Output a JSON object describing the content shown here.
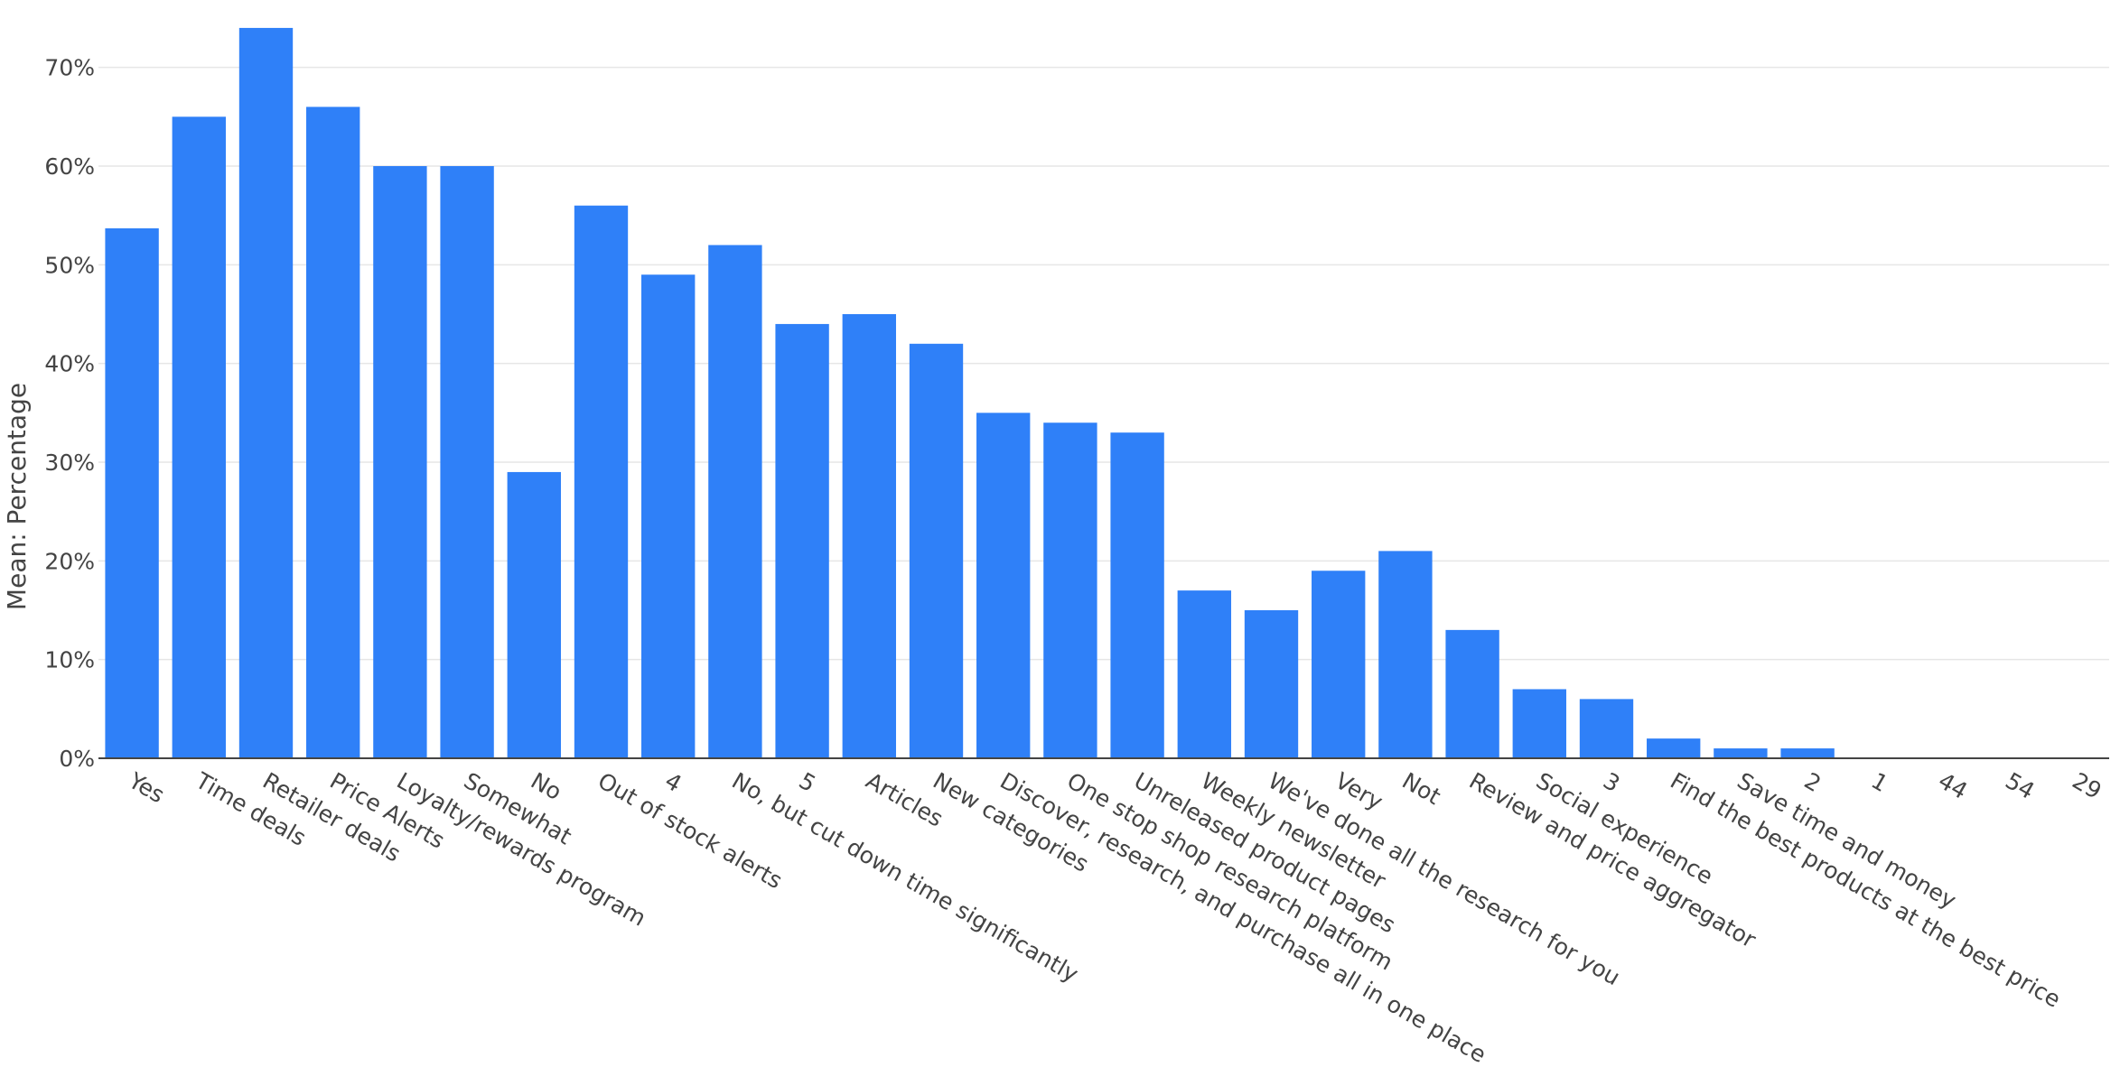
{
  "chart_data": {
    "type": "bar",
    "ylabel": "Mean: Percentage",
    "xlabel": "",
    "ylim": [
      0,
      75
    ],
    "yticks": [
      0,
      10,
      20,
      30,
      40,
      50,
      60,
      70
    ],
    "ytick_labels": [
      "0%",
      "10%",
      "20%",
      "30%",
      "40%",
      "50%",
      "60%",
      "70%"
    ],
    "grid": "horizontal",
    "bar_color": "#2f80f8",
    "categories": [
      "Yes",
      "Time deals",
      "Retailer deals",
      "Price Alerts",
      "Loyalty/rewards program",
      "Somewhat",
      "No",
      "Out of stock alerts",
      "4",
      "No, but cut down time significantly",
      "5",
      "Articles",
      "New categories",
      "Discover, research, and purchase all in one place",
      "One stop shop research platform",
      "Unreleased product pages",
      "Weekly newsletter",
      "We've done all the research for you",
      "Very",
      "Not",
      "Review and price aggregator",
      "Social experience",
      "3",
      "Find the best products at the best price",
      "Save time and money",
      "2",
      "1",
      "44",
      "54",
      "29"
    ],
    "values": [
      53.7,
      65,
      74,
      66,
      60,
      60,
      29,
      56,
      49,
      52,
      44,
      45,
      42,
      35,
      34,
      33,
      17,
      15,
      19,
      21,
      13,
      7,
      6,
      2,
      1,
      1,
      0,
      0,
      0,
      0
    ]
  }
}
